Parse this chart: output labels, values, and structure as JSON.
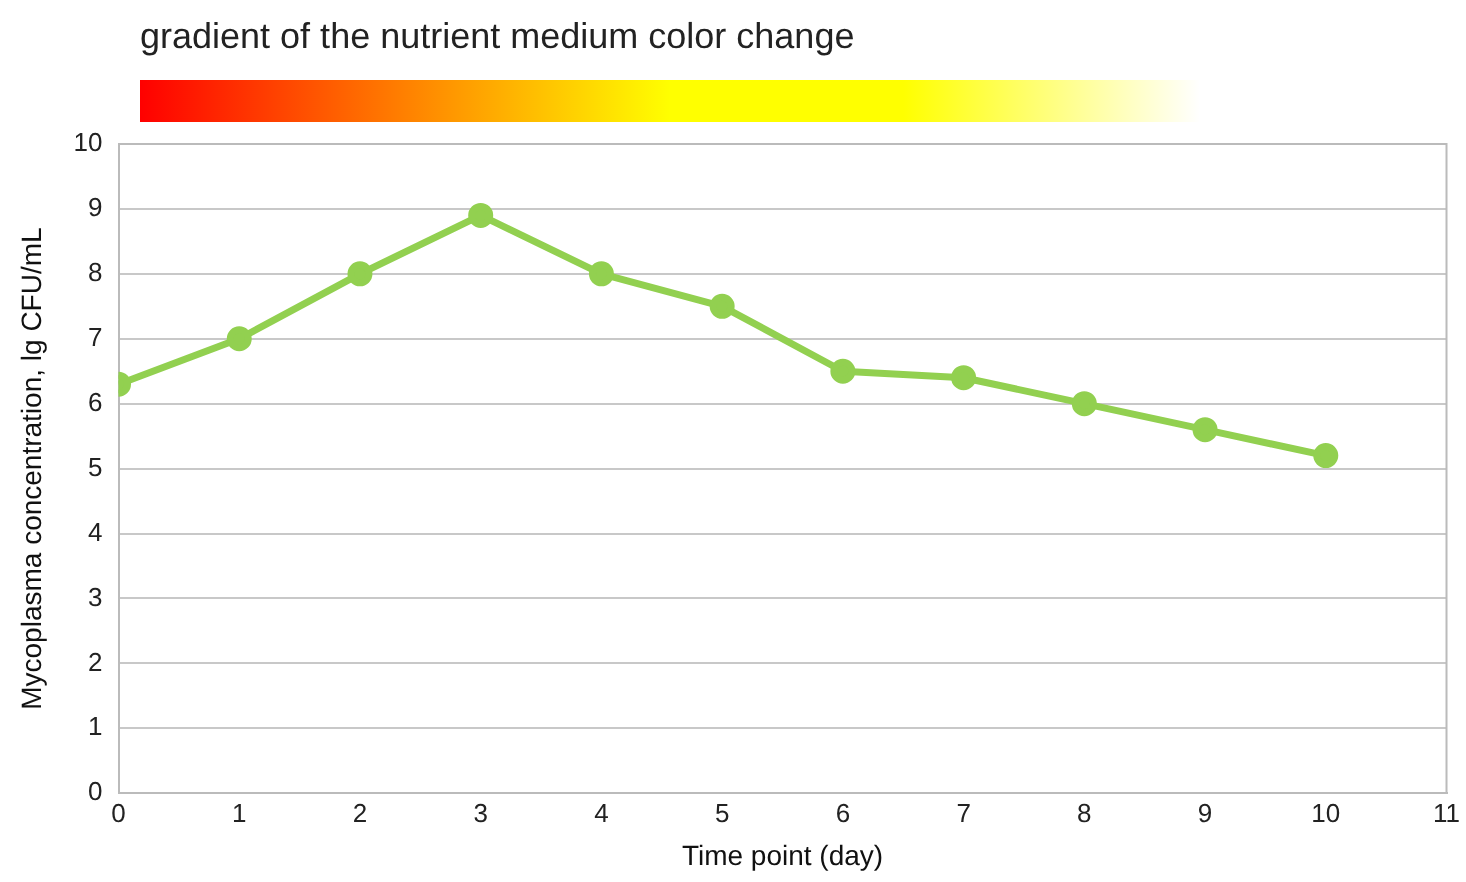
{
  "chart_data": {
    "type": "line",
    "title": "gradient of the nutrient medium color change",
    "xlabel": "Time point (day)",
    "ylabel": "Mycoplasma concentration, lg CFU/mL",
    "x": [
      0,
      1,
      2,
      3,
      4,
      5,
      6,
      7,
      8,
      9,
      10
    ],
    "series": [
      {
        "color": "#92d050",
        "values": [
          6.3,
          7.0,
          8.0,
          8.9,
          8.0,
          7.5,
          6.5,
          6.4,
          6.0,
          5.6,
          5.2
        ]
      }
    ],
    "xlim": [
      0,
      11
    ],
    "xticks": [
      0,
      1,
      2,
      3,
      4,
      5,
      6,
      7,
      8,
      9,
      10,
      11
    ],
    "ylim": [
      0,
      10
    ],
    "yticks": [
      0,
      1,
      2,
      3,
      4,
      5,
      6,
      7,
      8,
      9,
      10
    ],
    "grid": "y",
    "legend": false,
    "marker": "circle",
    "line_style": "solid"
  }
}
